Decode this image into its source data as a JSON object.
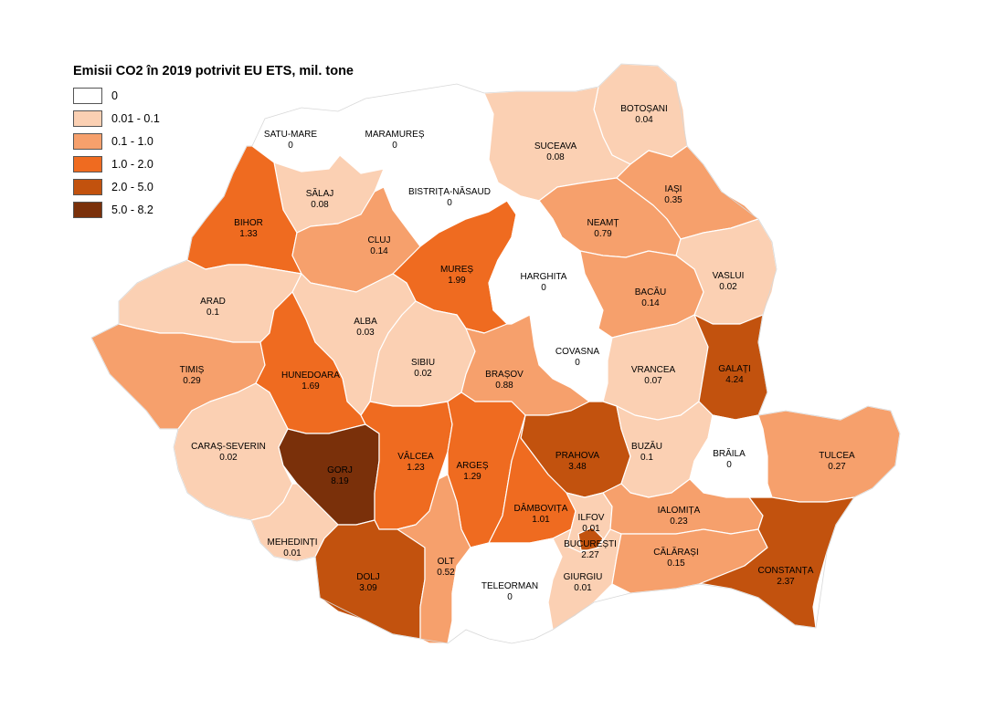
{
  "legend": {
    "title": "Emisii CO2 în 2019 potrivit EU ETS, mil. tone",
    "classes": [
      {
        "label": "0",
        "color": "#ffffff"
      },
      {
        "label": "0.01 - 0.1",
        "color": "#fbd0b3"
      },
      {
        "label": "0.1 - 1.0",
        "color": "#f6a06c"
      },
      {
        "label": "1.0 - 2.0",
        "color": "#ef6b20"
      },
      {
        "label": "2.0 - 5.0",
        "color": "#c2520e"
      },
      {
        "label": "5.0 - 8.2",
        "color": "#7a300a"
      }
    ]
  },
  "counties": [
    {
      "id": "satu-mare",
      "name": "SATU-MARE",
      "value": "0",
      "class": 0
    },
    {
      "id": "maramures",
      "name": "MARAMUREȘ",
      "value": "0",
      "class": 0
    },
    {
      "id": "botosani",
      "name": "BOTOȘANI",
      "value": "0.04",
      "class": 1
    },
    {
      "id": "suceava",
      "name": "SUCEAVA",
      "value": "0.08",
      "class": 1
    },
    {
      "id": "salaj",
      "name": "SĂLAJ",
      "value": "0.08",
      "class": 1
    },
    {
      "id": "bistrita-nasaud",
      "name": "BISTRIȚA-NĂSAUD",
      "value": "0",
      "class": 0
    },
    {
      "id": "iasi",
      "name": "IAȘI",
      "value": "0.35",
      "class": 2
    },
    {
      "id": "bihor",
      "name": "BIHOR",
      "value": "1.33",
      "class": 3
    },
    {
      "id": "cluj",
      "name": "CLUJ",
      "value": "0.14",
      "class": 2
    },
    {
      "id": "neamt",
      "name": "NEAMȚ",
      "value": "0.79",
      "class": 2
    },
    {
      "id": "mures",
      "name": "MUREȘ",
      "value": "1.99",
      "class": 3
    },
    {
      "id": "harghita",
      "name": "HARGHITA",
      "value": "0",
      "class": 0
    },
    {
      "id": "vaslui",
      "name": "VASLUI",
      "value": "0.02",
      "class": 1
    },
    {
      "id": "bacau",
      "name": "BACĂU",
      "value": "0.14",
      "class": 2
    },
    {
      "id": "arad",
      "name": "ARAD",
      "value": "0.1",
      "class": 1
    },
    {
      "id": "alba",
      "name": "ALBA",
      "value": "0.03",
      "class": 1
    },
    {
      "id": "covasna",
      "name": "COVASNA",
      "value": "0",
      "class": 0
    },
    {
      "id": "timis",
      "name": "TIMIȘ",
      "value": "0.29",
      "class": 2
    },
    {
      "id": "hunedoara",
      "name": "HUNEDOARA",
      "value": "1.69",
      "class": 3
    },
    {
      "id": "sibiu",
      "name": "SIBIU",
      "value": "0.02",
      "class": 1
    },
    {
      "id": "brasov",
      "name": "BRAȘOV",
      "value": "0.88",
      "class": 2
    },
    {
      "id": "vrancea",
      "name": "VRANCEA",
      "value": "0.07",
      "class": 1
    },
    {
      "id": "galati",
      "name": "GALAȚI",
      "value": "4.24",
      "class": 4
    },
    {
      "id": "caras-severin",
      "name": "CARAȘ-SEVERIN",
      "value": "0.02",
      "class": 1
    },
    {
      "id": "gorj",
      "name": "GORJ",
      "value": "8.19",
      "class": 5
    },
    {
      "id": "valcea",
      "name": "VÂLCEA",
      "value": "1.23",
      "class": 3
    },
    {
      "id": "arges",
      "name": "ARGEȘ",
      "value": "1.29",
      "class": 3
    },
    {
      "id": "prahova",
      "name": "PRAHOVA",
      "value": "3.48",
      "class": 4
    },
    {
      "id": "buzau",
      "name": "BUZĂU",
      "value": "0.1",
      "class": 1
    },
    {
      "id": "braila",
      "name": "BRĂILA",
      "value": "0",
      "class": 0
    },
    {
      "id": "tulcea",
      "name": "TULCEA",
      "value": "0.27",
      "class": 2
    },
    {
      "id": "dambovita",
      "name": "DÂMBOVIȚA",
      "value": "1.01",
      "class": 3
    },
    {
      "id": "ilfov",
      "name": "ILFOV",
      "value": "0.01",
      "class": 1
    },
    {
      "id": "bucuresti",
      "name": "BUCUREȘTI",
      "value": "2.27",
      "class": 4
    },
    {
      "id": "ialomita",
      "name": "IALOMIȚA",
      "value": "0.23",
      "class": 2
    },
    {
      "id": "mehedinti",
      "name": "MEHEDINȚI",
      "value": "0.01",
      "class": 1
    },
    {
      "id": "dolj",
      "name": "DOLJ",
      "value": "3.09",
      "class": 4
    },
    {
      "id": "olt",
      "name": "OLT",
      "value": "0.52",
      "class": 2
    },
    {
      "id": "teleorman",
      "name": "TELEORMAN",
      "value": "0",
      "class": 0
    },
    {
      "id": "giurgiu",
      "name": "GIURGIU",
      "value": "0.01",
      "class": 1
    },
    {
      "id": "calarasi",
      "name": "CĂLĂRAȘI",
      "value": "0.15",
      "class": 2
    },
    {
      "id": "constanta",
      "name": "CONSTANȚA",
      "value": "2.37",
      "class": 4
    }
  ]
}
